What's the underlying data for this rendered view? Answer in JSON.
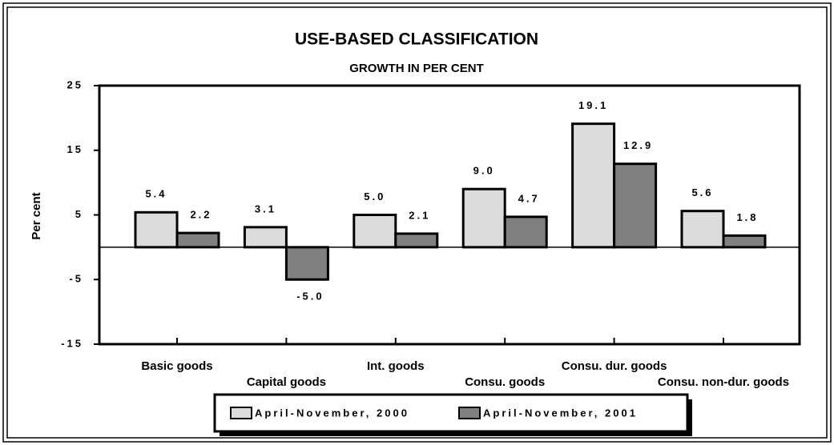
{
  "chart_data": {
    "type": "bar",
    "title": "USE-BASED CLASSIFICATION",
    "subtitle": "GROWTH IN PER CENT",
    "y_label": "Per cent",
    "categories": [
      "Basic goods",
      "Capital goods",
      "Int. goods",
      "Consu. goods",
      "Consu. dur. goods",
      "Consu. non-dur. goods"
    ],
    "series": [
      {
        "name": "April-November, 2000",
        "color": "#dcdcdc",
        "values": [
          5.4,
          3.1,
          5.0,
          9.0,
          19.1,
          5.6
        ],
        "value_labels": [
          "5.4",
          "3.1",
          "5.0",
          "9.0",
          "19.1",
          "5.6"
        ]
      },
      {
        "name": "April-November, 2001",
        "color": "#808080",
        "values": [
          2.2,
          -5.0,
          2.1,
          4.7,
          12.9,
          1.8
        ],
        "value_labels": [
          "2.2",
          "-5.0",
          "2.1",
          "4.7",
          "12.9",
          "1.8"
        ]
      }
    ],
    "ylim": [
      -15,
      25
    ],
    "yticks": [
      -15,
      -5,
      5,
      15,
      25
    ]
  }
}
